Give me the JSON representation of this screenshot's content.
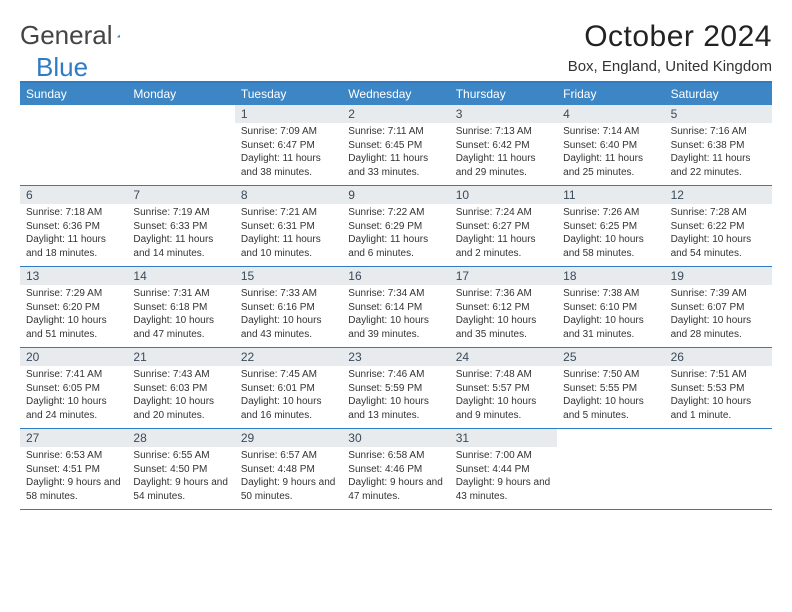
{
  "logo": {
    "text1": "General",
    "text2": "Blue"
  },
  "title": "October 2024",
  "location": "Box, England, United Kingdom",
  "colors": {
    "header_bg": "#3d86c6",
    "border": "#2f7cc4",
    "daynum_bg": "#e8ebee",
    "text": "#333333",
    "logo_blue": "#2f7cc4"
  },
  "day_headers": [
    "Sunday",
    "Monday",
    "Tuesday",
    "Wednesday",
    "Thursday",
    "Friday",
    "Saturday"
  ],
  "weeks": [
    [
      null,
      null,
      {
        "n": "1",
        "sr": "Sunrise: 7:09 AM",
        "ss": "Sunset: 6:47 PM",
        "dl": "Daylight: 11 hours and 38 minutes."
      },
      {
        "n": "2",
        "sr": "Sunrise: 7:11 AM",
        "ss": "Sunset: 6:45 PM",
        "dl": "Daylight: 11 hours and 33 minutes."
      },
      {
        "n": "3",
        "sr": "Sunrise: 7:13 AM",
        "ss": "Sunset: 6:42 PM",
        "dl": "Daylight: 11 hours and 29 minutes."
      },
      {
        "n": "4",
        "sr": "Sunrise: 7:14 AM",
        "ss": "Sunset: 6:40 PM",
        "dl": "Daylight: 11 hours and 25 minutes."
      },
      {
        "n": "5",
        "sr": "Sunrise: 7:16 AM",
        "ss": "Sunset: 6:38 PM",
        "dl": "Daylight: 11 hours and 22 minutes."
      }
    ],
    [
      {
        "n": "6",
        "sr": "Sunrise: 7:18 AM",
        "ss": "Sunset: 6:36 PM",
        "dl": "Daylight: 11 hours and 18 minutes."
      },
      {
        "n": "7",
        "sr": "Sunrise: 7:19 AM",
        "ss": "Sunset: 6:33 PM",
        "dl": "Daylight: 11 hours and 14 minutes."
      },
      {
        "n": "8",
        "sr": "Sunrise: 7:21 AM",
        "ss": "Sunset: 6:31 PM",
        "dl": "Daylight: 11 hours and 10 minutes."
      },
      {
        "n": "9",
        "sr": "Sunrise: 7:22 AM",
        "ss": "Sunset: 6:29 PM",
        "dl": "Daylight: 11 hours and 6 minutes."
      },
      {
        "n": "10",
        "sr": "Sunrise: 7:24 AM",
        "ss": "Sunset: 6:27 PM",
        "dl": "Daylight: 11 hours and 2 minutes."
      },
      {
        "n": "11",
        "sr": "Sunrise: 7:26 AM",
        "ss": "Sunset: 6:25 PM",
        "dl": "Daylight: 10 hours and 58 minutes."
      },
      {
        "n": "12",
        "sr": "Sunrise: 7:28 AM",
        "ss": "Sunset: 6:22 PM",
        "dl": "Daylight: 10 hours and 54 minutes."
      }
    ],
    [
      {
        "n": "13",
        "sr": "Sunrise: 7:29 AM",
        "ss": "Sunset: 6:20 PM",
        "dl": "Daylight: 10 hours and 51 minutes."
      },
      {
        "n": "14",
        "sr": "Sunrise: 7:31 AM",
        "ss": "Sunset: 6:18 PM",
        "dl": "Daylight: 10 hours and 47 minutes."
      },
      {
        "n": "15",
        "sr": "Sunrise: 7:33 AM",
        "ss": "Sunset: 6:16 PM",
        "dl": "Daylight: 10 hours and 43 minutes."
      },
      {
        "n": "16",
        "sr": "Sunrise: 7:34 AM",
        "ss": "Sunset: 6:14 PM",
        "dl": "Daylight: 10 hours and 39 minutes."
      },
      {
        "n": "17",
        "sr": "Sunrise: 7:36 AM",
        "ss": "Sunset: 6:12 PM",
        "dl": "Daylight: 10 hours and 35 minutes."
      },
      {
        "n": "18",
        "sr": "Sunrise: 7:38 AM",
        "ss": "Sunset: 6:10 PM",
        "dl": "Daylight: 10 hours and 31 minutes."
      },
      {
        "n": "19",
        "sr": "Sunrise: 7:39 AM",
        "ss": "Sunset: 6:07 PM",
        "dl": "Daylight: 10 hours and 28 minutes."
      }
    ],
    [
      {
        "n": "20",
        "sr": "Sunrise: 7:41 AM",
        "ss": "Sunset: 6:05 PM",
        "dl": "Daylight: 10 hours and 24 minutes."
      },
      {
        "n": "21",
        "sr": "Sunrise: 7:43 AM",
        "ss": "Sunset: 6:03 PM",
        "dl": "Daylight: 10 hours and 20 minutes."
      },
      {
        "n": "22",
        "sr": "Sunrise: 7:45 AM",
        "ss": "Sunset: 6:01 PM",
        "dl": "Daylight: 10 hours and 16 minutes."
      },
      {
        "n": "23",
        "sr": "Sunrise: 7:46 AM",
        "ss": "Sunset: 5:59 PM",
        "dl": "Daylight: 10 hours and 13 minutes."
      },
      {
        "n": "24",
        "sr": "Sunrise: 7:48 AM",
        "ss": "Sunset: 5:57 PM",
        "dl": "Daylight: 10 hours and 9 minutes."
      },
      {
        "n": "25",
        "sr": "Sunrise: 7:50 AM",
        "ss": "Sunset: 5:55 PM",
        "dl": "Daylight: 10 hours and 5 minutes."
      },
      {
        "n": "26",
        "sr": "Sunrise: 7:51 AM",
        "ss": "Sunset: 5:53 PM",
        "dl": "Daylight: 10 hours and 1 minute."
      }
    ],
    [
      {
        "n": "27",
        "sr": "Sunrise: 6:53 AM",
        "ss": "Sunset: 4:51 PM",
        "dl": "Daylight: 9 hours and 58 minutes."
      },
      {
        "n": "28",
        "sr": "Sunrise: 6:55 AM",
        "ss": "Sunset: 4:50 PM",
        "dl": "Daylight: 9 hours and 54 minutes."
      },
      {
        "n": "29",
        "sr": "Sunrise: 6:57 AM",
        "ss": "Sunset: 4:48 PM",
        "dl": "Daylight: 9 hours and 50 minutes."
      },
      {
        "n": "30",
        "sr": "Sunrise: 6:58 AM",
        "ss": "Sunset: 4:46 PM",
        "dl": "Daylight: 9 hours and 47 minutes."
      },
      {
        "n": "31",
        "sr": "Sunrise: 7:00 AM",
        "ss": "Sunset: 4:44 PM",
        "dl": "Daylight: 9 hours and 43 minutes."
      },
      null,
      null
    ]
  ]
}
